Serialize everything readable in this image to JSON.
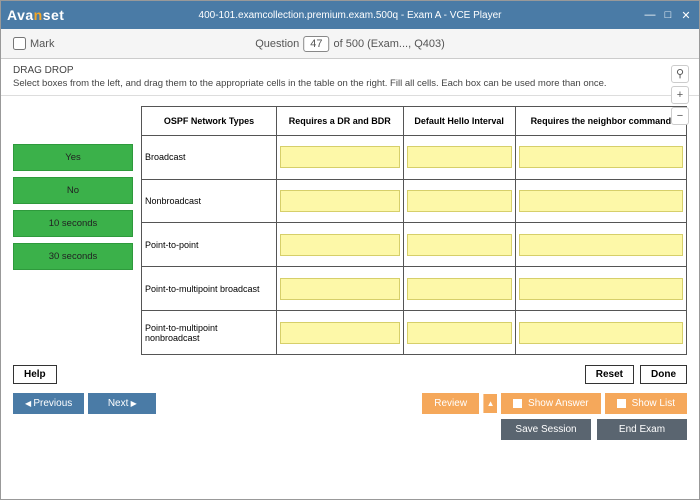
{
  "window": {
    "logo_pre": "Ava",
    "logo_accent": "n",
    "logo_post": "set",
    "title": "400-101.examcollection.premium.exam.500q - Exam A - VCE Player",
    "min": "—",
    "max": "□",
    "close": "✕"
  },
  "qbar": {
    "mark": "Mark",
    "question_label": "Question",
    "num": "47",
    "suffix": " of 500 (Exam..., Q403)"
  },
  "instr": {
    "line1": "DRAG DROP",
    "line2": "Select boxes from the left, and drag them to the appropriate cells in the table on the right. Fill all cells. Each box can be used more than once.",
    "search": "⚲",
    "plus": "+",
    "minus": "−"
  },
  "sources": [
    "Yes",
    "No",
    "10 seconds",
    "30 seconds"
  ],
  "table": {
    "headers": [
      "OSPF Network Types",
      "Requires a DR and BDR",
      "Default Hello Interval",
      "Requires the neighbor command"
    ],
    "rows": [
      "Broadcast",
      "Nonbroadcast",
      "Point-to-point",
      "Point-to-multipoint broadcast",
      "Point-to-multipoint nonbroadcast"
    ]
  },
  "actions": {
    "help": "Help",
    "reset": "Reset",
    "done": "Done"
  },
  "nav": {
    "previous": "Previous",
    "next": "Next",
    "review": "Review",
    "show_answer": "Show Answer",
    "show_list": "Show List"
  },
  "bottom": {
    "save": "Save Session",
    "end": "End Exam"
  }
}
